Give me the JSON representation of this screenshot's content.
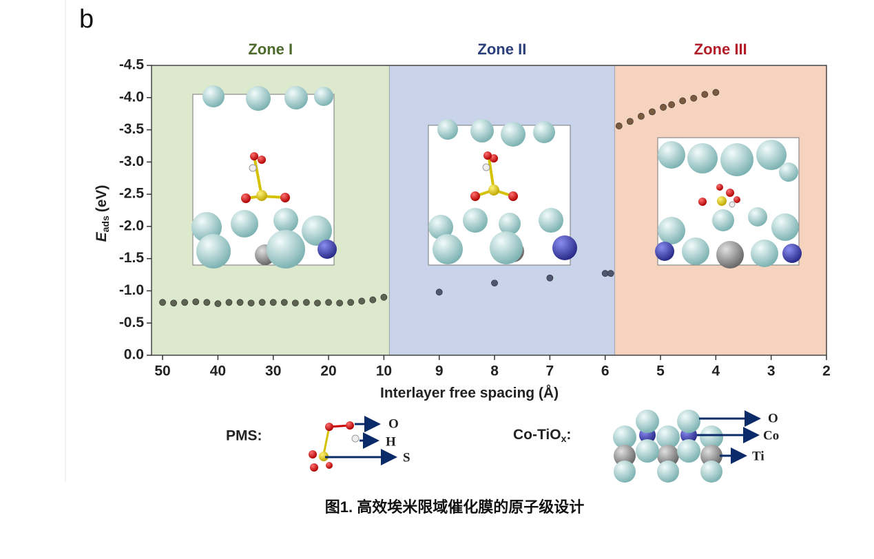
{
  "panel_label": "b",
  "chart_data": {
    "type": "scatter",
    "x_label": "Interlayer free spacing (Å)",
    "y_label": {
      "symbol": "E",
      "subscript": "ads",
      "unit": "(eV)"
    },
    "xscale": "piecewise",
    "xlim": [
      52,
      2
    ],
    "xticks": [
      50,
      40,
      30,
      20,
      10,
      9,
      8,
      7,
      6,
      5,
      4,
      3,
      2
    ],
    "ylim": [
      0,
      -4.5
    ],
    "yticks": [
      {
        "value": 0,
        "label": "0.0"
      },
      -0.5,
      {
        "value": -1,
        "label": "-1.0"
      },
      -1.5,
      {
        "value": -2,
        "label": "-2.0"
      },
      -2.5,
      {
        "value": -3,
        "label": "-3.0"
      },
      -3.5,
      {
        "value": -4,
        "label": "-4.0"
      },
      -4.5
    ],
    "zones": [
      {
        "name": "Zone I",
        "color": "#dce9cd",
        "label_color": "#4b6a2b",
        "xlim": [
          52,
          9.9
        ]
      },
      {
        "name": "Zone II",
        "color": "#c9d4eb",
        "label_color": "#2b3f7a",
        "xlim": [
          9.9,
          5.83
        ]
      },
      {
        "name": "Zone III",
        "color": "#f6d3be",
        "label_color": "#b21d29",
        "xlim": [
          5.83,
          2
        ]
      }
    ],
    "series": [
      {
        "color": "#5d6352",
        "x": [
          50,
          48,
          46,
          44,
          42,
          40,
          38,
          36,
          34,
          32,
          30,
          28,
          26,
          24,
          22,
          20,
          18,
          16,
          14,
          12,
          10
        ],
        "values": [
          -0.82,
          -0.81,
          -0.82,
          -0.83,
          -0.82,
          -0.8,
          -0.82,
          -0.82,
          -0.81,
          -0.82,
          -0.82,
          -0.82,
          -0.81,
          -0.82,
          -0.81,
          -0.82,
          -0.81,
          -0.82,
          -0.84,
          -0.86,
          -0.9
        ]
      },
      {
        "color": "#4f5670",
        "x": [
          9,
          8,
          7,
          6,
          5.9
        ],
        "values": [
          -0.98,
          -1.12,
          -1.2,
          -1.27,
          -1.27
        ]
      },
      {
        "color": "#7b5b3f",
        "x": [
          5.75,
          5.55,
          5.35,
          5.15,
          4.95,
          4.8,
          4.6,
          4.4,
          4.2,
          4.0
        ],
        "values": [
          -3.56,
          -3.63,
          -3.71,
          -3.78,
          -3.85,
          -3.89,
          -3.95,
          -3.99,
          -4.05,
          -4.08
        ]
      }
    ]
  },
  "legend_pms": {
    "label": "PMS:",
    "atoms": [
      "O",
      "H",
      "S"
    ]
  },
  "legend_cotio": {
    "label": "Co-TiO",
    "subscript": "x",
    "suffix": ":",
    "atoms": [
      "O",
      "Co",
      "Ti"
    ]
  },
  "caption": "图1. 高效埃米限域催化膜的原子级设计"
}
